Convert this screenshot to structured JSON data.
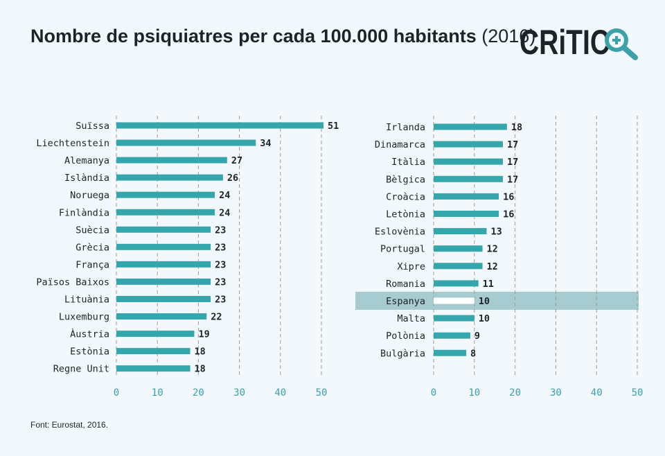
{
  "header": {
    "title_bold": "Nombre de psiquiatres per cada 100.000 habitants",
    "title_year": "(2016)"
  },
  "logo": {
    "text": "CRiTIC",
    "icon": "magnifier-plus-icon",
    "color_dark": "#1d2327",
    "color_accent": "#3da1a9"
  },
  "source": "Font: Eurostat, 2016.",
  "colors": {
    "bar": "#36a6ad",
    "highlight_bar": "#ffffff",
    "highlight_band": "#a6cbd1",
    "grid": "#9a9a9a",
    "tick": "#38a2ad"
  },
  "chart_data": [
    {
      "type": "bar",
      "orientation": "horizontal",
      "categories": [
        "Suïssa",
        "Liechtenstein",
        "Alemanya",
        "Islàndia",
        "Noruega",
        "Finlàndia",
        "Suècia",
        "Grècia",
        "França",
        "Països Baixos",
        "Lituània",
        "Luxemburg",
        "Àustria",
        "Estònia",
        "Regne Unit"
      ],
      "values": [
        51,
        34,
        27,
        26,
        24,
        24,
        23,
        23,
        23,
        23,
        23,
        22,
        19,
        18,
        18
      ],
      "xlim": [
        0,
        50
      ],
      "xticks": [
        0,
        10,
        20,
        30,
        40,
        50
      ],
      "grid": true
    },
    {
      "type": "bar",
      "orientation": "horizontal",
      "categories": [
        "Irlanda",
        "Dinamarca",
        "Itàlia",
        "Bèlgica",
        "Croàcia",
        "Letònia",
        "Eslovènia",
        "Portugal",
        "Xipre",
        "Romania",
        "Espanya",
        "Malta",
        "Polònia",
        "Bulgària"
      ],
      "values": [
        18,
        17,
        17,
        17,
        16,
        16,
        13,
        12,
        12,
        11,
        10,
        10,
        9,
        8
      ],
      "highlight": "Espanya",
      "xlim": [
        0,
        50
      ],
      "xticks": [
        0,
        10,
        20,
        30,
        40,
        50
      ],
      "grid": true
    }
  ]
}
